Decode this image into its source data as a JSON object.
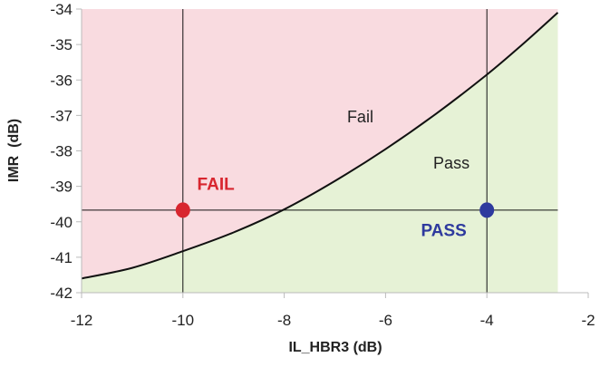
{
  "chart_data": {
    "type": "area",
    "title": "",
    "xlabel": "IL_HBR3 (dB)",
    "ylabel": "IMR  (dB)",
    "xlim": [
      -12,
      -2
    ],
    "ylim": [
      -42,
      -34
    ],
    "xticks": [
      "-12",
      "-10",
      "-8",
      "-6",
      "-4",
      "-2"
    ],
    "yticks": [
      "-34",
      "-35",
      "-36",
      "-37",
      "-38",
      "-39",
      "-40",
      "-41",
      "-42"
    ],
    "grid": false,
    "region_x_max": -2.6,
    "boundary_curve": {
      "x": [
        -12,
        -11,
        -10,
        -9,
        -8,
        -7,
        -6,
        -5,
        -4,
        -3.3,
        -2.6
      ],
      "y": [
        -41.6,
        -41.3,
        -40.83,
        -40.3,
        -39.65,
        -38.85,
        -37.95,
        -36.95,
        -35.85,
        -35.0,
        -34.1
      ]
    },
    "regions": [
      {
        "label": "Fail",
        "color": "#f9dbe0",
        "label_pos": [
          -6.5,
          -37.2
        ]
      },
      {
        "label": "Pass",
        "color": "#e6f2d6",
        "label_pos": [
          -4.7,
          -38.5
        ]
      }
    ],
    "reference_lines": {
      "vertical_x": [
        -10,
        -4
      ],
      "horizontal_y": -39.67
    },
    "points": [
      {
        "x": -10,
        "y": -39.67,
        "label": "FAIL",
        "color": "#d8262f",
        "label_pos": [
          -9.35,
          -39.1
        ]
      },
      {
        "x": -4,
        "y": -39.67,
        "label": "PASS",
        "color": "#2e3a9e",
        "label_pos": [
          -4.85,
          -40.4
        ]
      }
    ]
  }
}
